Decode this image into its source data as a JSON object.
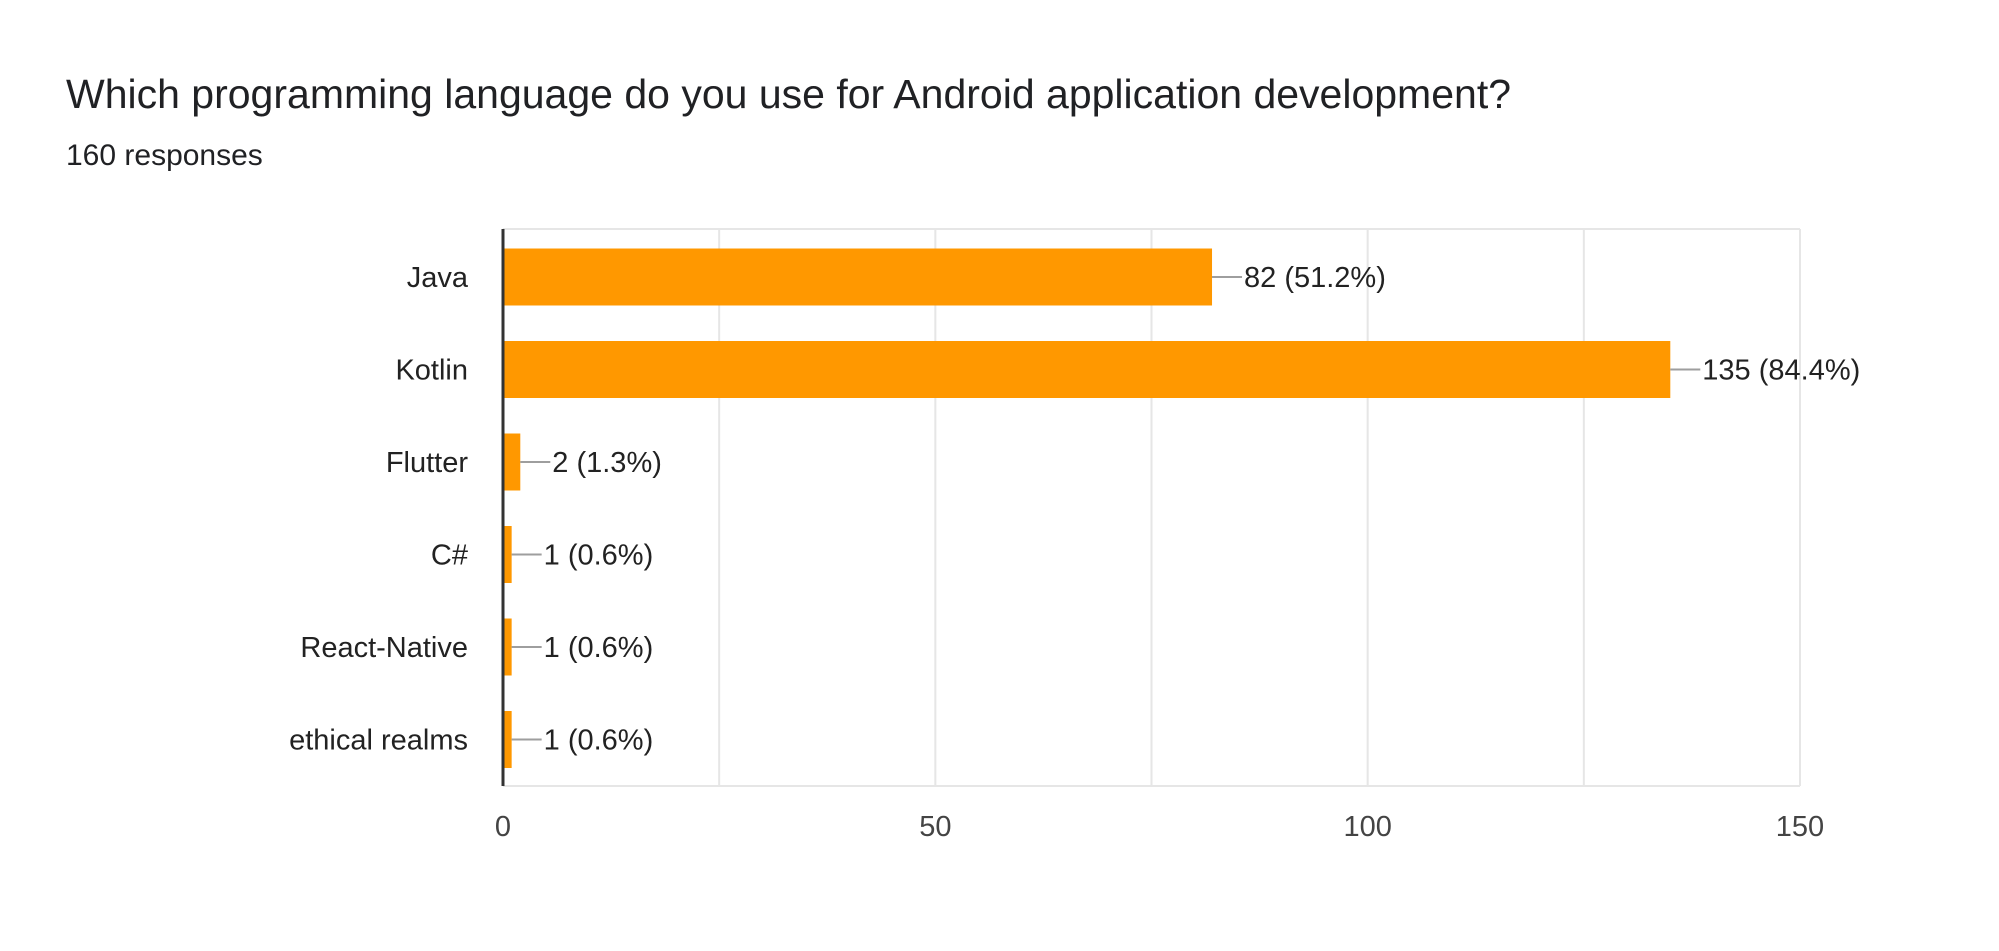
{
  "header": {
    "title": "Which programming language do you use for Android application development?",
    "subtitle": "160 responses"
  },
  "colors": {
    "bar": "#ff9800",
    "grid": "#e6e6e6",
    "axis": "#333333",
    "leader": "#9e9e9e"
  },
  "chart_data": {
    "type": "bar",
    "orientation": "horizontal",
    "title": "Which programming language do you use for Android application development?",
    "subtitle": "160 responses",
    "categories": [
      "Java",
      "Kotlin",
      "Flutter",
      "C#",
      "React-Native",
      "ethical realms"
    ],
    "values": [
      82,
      135,
      2,
      1,
      1,
      1
    ],
    "data_labels": [
      "82 (51.2%)",
      "135 (84.4%)",
      "2 (1.3%)",
      "1 (0.6%)",
      "1 (0.6%)",
      "1 (0.6%)"
    ],
    "xlim": [
      0,
      150
    ],
    "xticks": [
      0,
      50,
      100,
      150
    ],
    "grid": true,
    "legend": "none"
  }
}
